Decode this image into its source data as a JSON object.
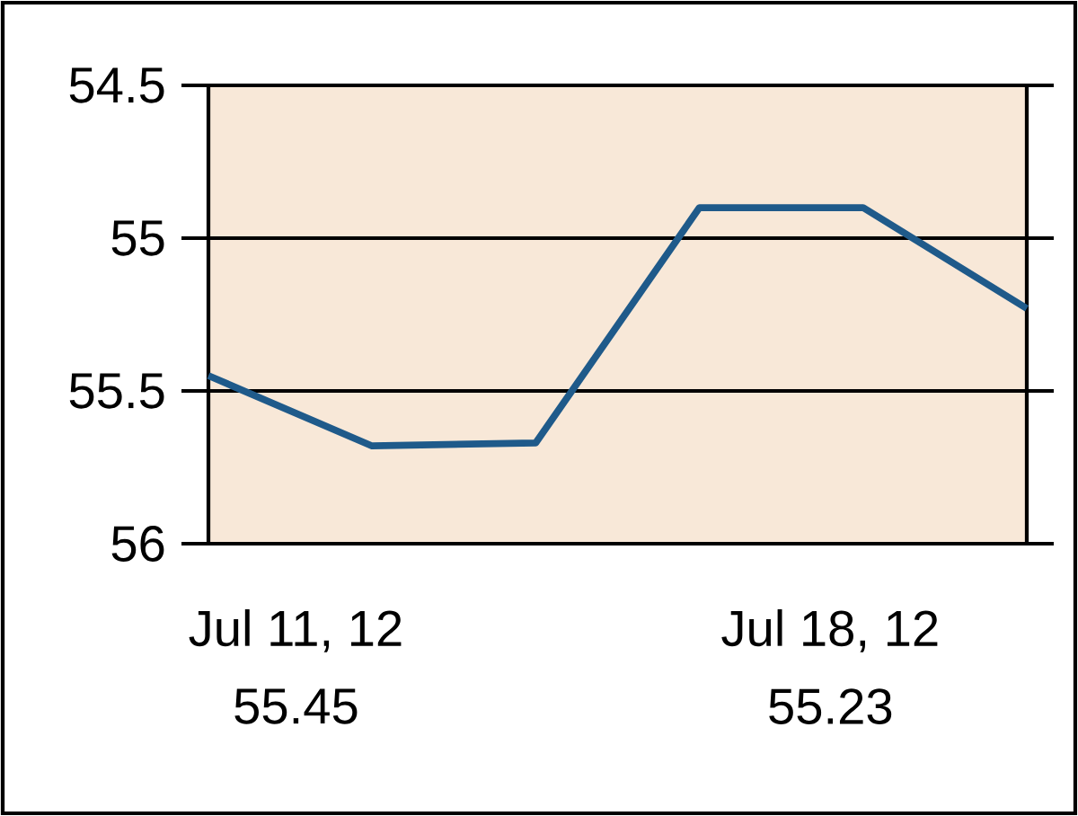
{
  "chart_data": {
    "type": "line",
    "categories": [
      null,
      null,
      null,
      null,
      null,
      null
    ],
    "values": [
      55.45,
      55.68,
      55.67,
      54.9,
      54.9,
      55.23
    ],
    "color": "#1f5a8a",
    "ylim": [
      56,
      54.5
    ],
    "yticks": [
      54.5,
      55,
      55.5,
      56
    ],
    "grid": "y",
    "annotations": [
      "Jul 11, 12",
      "55.45",
      "Jul 18, 12",
      "55.23"
    ]
  }
}
